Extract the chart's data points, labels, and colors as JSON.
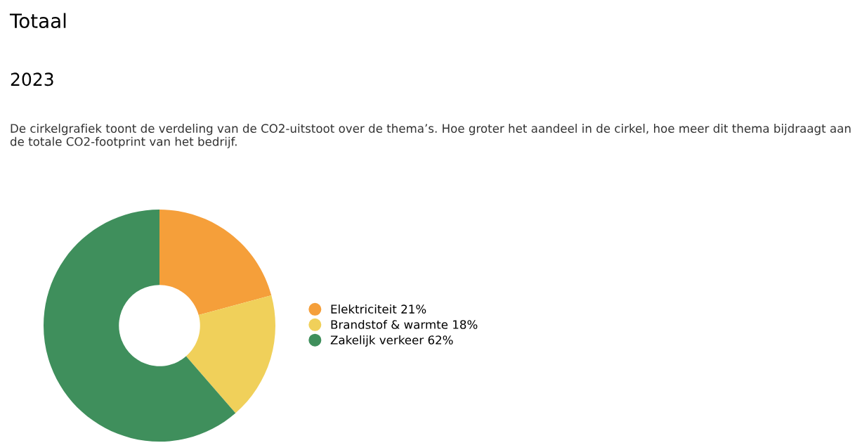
{
  "chart_data": {
    "type": "donut",
    "title": "Totaal",
    "subtitle": "2023",
    "annotations": [
      "De cirkelgrafiek toont de verdeling van de CO2-uitstoot over de thema’s. Hoe groter het aandeel in de cirkel, hoe meer dit thema bijdraagt aan de totale CO2-footprint van het bedrijf."
    ],
    "categories": [
      "Elektriciteit 21%",
      "Brandstof & warmte 18%",
      "Zakelijk verkeer 62%"
    ],
    "values": [
      21,
      18,
      62
    ],
    "colors": [
      "#f59f3a",
      "#f0d05a",
      "#3f8f5c"
    ],
    "legend": "right"
  }
}
